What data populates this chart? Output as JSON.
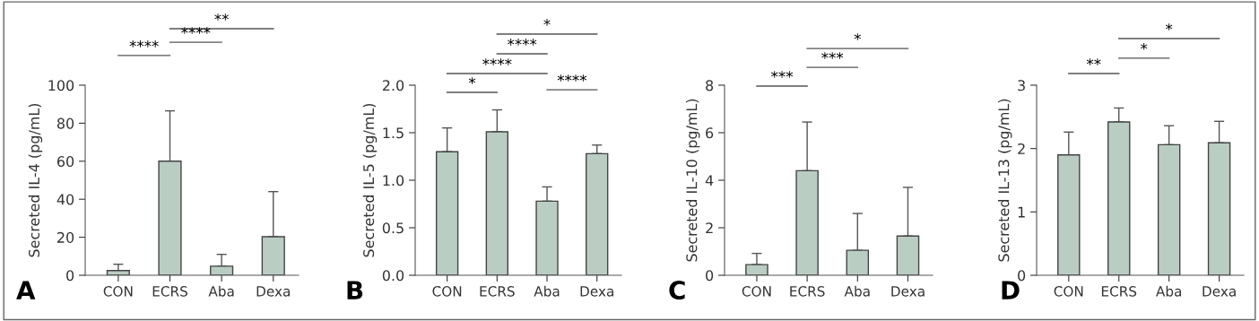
{
  "chart_data": [
    {
      "type": "bar",
      "categories": [
        "CON",
        "ECRS",
        "Aba",
        "Dexa"
      ],
      "values": [
        2.5,
        60,
        4.8,
        20.3
      ],
      "color": "#b9cdc3",
      "errors": [
        [
          2.5,
          5.8
        ],
        [
          60,
          86.5
        ],
        [
          4.8,
          11
        ],
        [
          20.3,
          44
        ]
      ],
      "ylabel": "Secreted IL-4 (pg/mL)",
      "ylim": [
        0,
        100
      ],
      "yticks": [
        0,
        20,
        40,
        60,
        80,
        100
      ],
      "grid": false,
      "annotations": [
        "A",
        "****",
        "****",
        "**"
      ]
    },
    {
      "type": "bar",
      "categories": [
        "CON",
        "ECRS",
        "Aba",
        "Dexa"
      ],
      "values": [
        1.3,
        1.51,
        0.78,
        1.28
      ],
      "color": "#b9cdc3",
      "errors": [
        [
          1.3,
          1.55
        ],
        [
          1.51,
          1.74
        ],
        [
          0.78,
          0.93
        ],
        [
          1.28,
          1.37
        ]
      ],
      "ylabel": "Secreted IL-5 (pg/mL)",
      "ylim": [
        0,
        2.0
      ],
      "yticks": [
        {
          "value": 0,
          "label": "0.0"
        },
        0.5,
        {
          "value": 1,
          "label": "1.0"
        },
        1.5,
        {
          "value": 2,
          "label": "2.0"
        }
      ],
      "grid": false,
      "annotations": [
        "B",
        "*",
        "****",
        "****",
        "****",
        "*"
      ]
    },
    {
      "type": "bar",
      "categories": [
        "CON",
        "ECRS",
        "Aba",
        "Dexa"
      ],
      "values": [
        0.45,
        4.4,
        1.05,
        1.65
      ],
      "color": "#b9cdc3",
      "errors": [
        [
          0.45,
          0.92
        ],
        [
          4.4,
          6.45
        ],
        [
          1.05,
          2.6
        ],
        [
          1.65,
          3.7
        ]
      ],
      "ylabel": "Secreted IL-10 (pg/mL)",
      "ylim": [
        0,
        8
      ],
      "yticks": [
        0,
        2,
        4,
        6,
        8
      ],
      "grid": false,
      "annotations": [
        "C",
        "***",
        "***",
        "*"
      ]
    },
    {
      "type": "bar",
      "categories": [
        "CON",
        "ECRS",
        "Aba",
        "Dexa"
      ],
      "values": [
        1.9,
        2.42,
        2.06,
        2.09
      ],
      "color": "#b9cdc3",
      "errors": [
        [
          1.9,
          2.26
        ],
        [
          2.42,
          2.64
        ],
        [
          2.06,
          2.36
        ],
        [
          2.09,
          2.43
        ]
      ],
      "ylabel": "Secreted IL-13 (pg/mL)",
      "ylim": [
        0,
        3
      ],
      "yticks": [
        0,
        1,
        2,
        3
      ],
      "grid": false,
      "annotations": [
        "D",
        "**",
        "*",
        "*"
      ]
    }
  ]
}
